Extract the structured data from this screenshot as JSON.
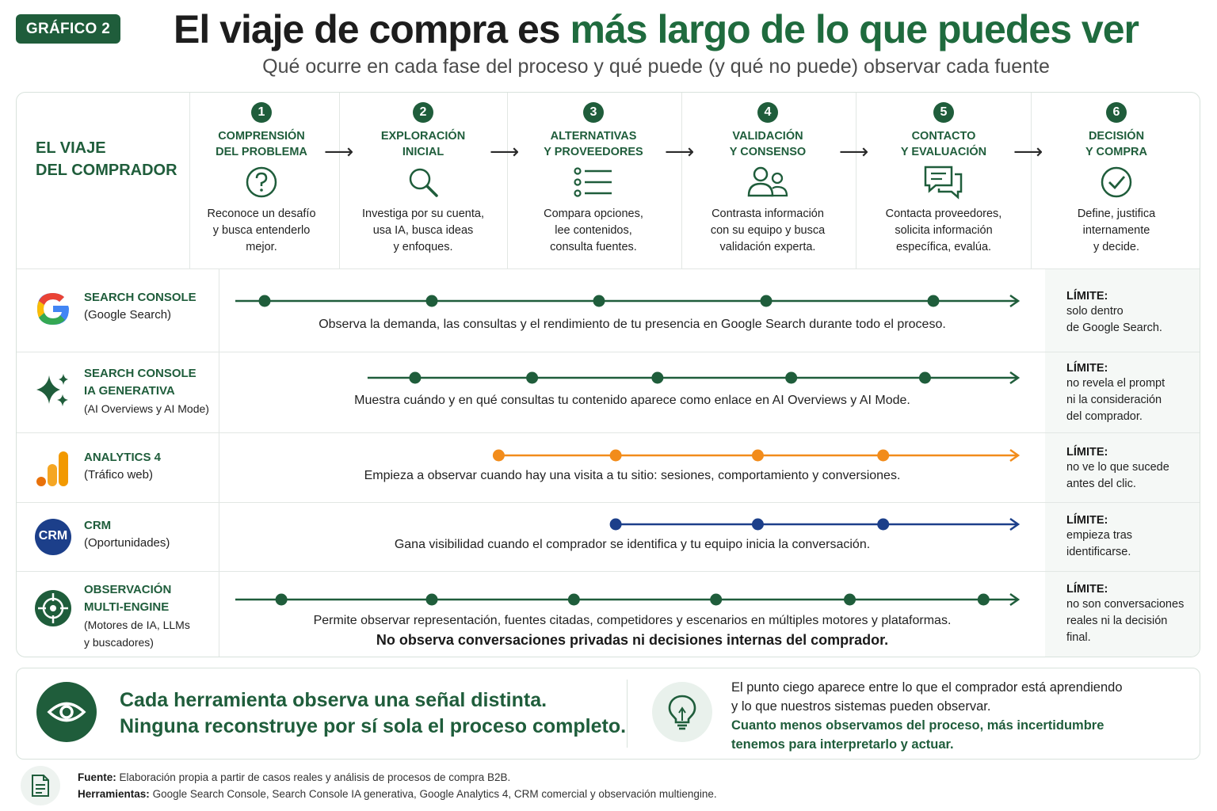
{
  "header": {
    "badge": "GRÁFICO 2",
    "title_plain": "El viaje de compra es",
    "title_accent": "más largo de lo que puedes ver",
    "subtitle": "Qué ocurre en cada fase del proceso y qué puede (y qué no puede) observar cada fuente"
  },
  "journey": {
    "label_line1": "EL VIAJE",
    "label_line2": "DEL COMPRADOR",
    "stages": [
      {
        "num": "1",
        "name": "COMPRENSIÓN\nDEL PROBLEMA",
        "icon": "question-circle-icon",
        "desc": "Reconoce un desafío\ny busca entenderlo\nmejor."
      },
      {
        "num": "2",
        "name": "EXPLORACIÓN\nINICIAL",
        "icon": "magnifier-icon",
        "desc": "Investiga por su cuenta,\nusa IA, busca ideas\ny enfoques."
      },
      {
        "num": "3",
        "name": "ALTERNATIVAS\nY PROVEEDORES",
        "icon": "list-icon",
        "desc": "Compara opciones,\nlee contenidos,\nconsulta fuentes."
      },
      {
        "num": "4",
        "name": "VALIDACIÓN\nY CONSENSO",
        "icon": "users-icon",
        "desc": "Contrasta información\ncon su equipo y busca\nvalidación experta."
      },
      {
        "num": "5",
        "name": "CONTACTO\nY EVALUACIÓN",
        "icon": "chat-bubbles-icon",
        "desc": "Contacta proveedores,\nsolicita información\nespecífica, evalúa."
      },
      {
        "num": "6",
        "name": "DECISIÓN\nY COMPRA",
        "icon": "check-circle-icon",
        "desc": "Define, justifica\ninternamente\ny decide."
      }
    ],
    "arrow_glyph": "⟶"
  },
  "tools": [
    {
      "id": "search-console",
      "logo": "google-g-icon",
      "name": "SEARCH CONSOLE",
      "sub": "(Google Search)",
      "color": "#1f5d3b",
      "points": [
        1,
        2,
        3,
        4,
        5
      ],
      "desc": "Observa la demanda, las consultas y el rendimiento de tu presencia en Google Search durante todo el proceso.",
      "desc2": "",
      "limit_title": "LÍMITE:",
      "limit_body": "solo dentro\nde Google Search."
    },
    {
      "id": "search-console-ia",
      "logo": "sparkles-icon",
      "name": "SEARCH CONSOLE\nIA GENERATIVA",
      "sub": "(AI Overviews y AI Mode)",
      "color": "#1f5d3b",
      "points": [
        1.9,
        2.6,
        3.35,
        4.15,
        4.95
      ],
      "desc": "Muestra cuándo y en qué consultas tu contenido aparece como enlace en AI Overviews y AI Mode.",
      "desc2": "",
      "limit_title": "LÍMITE:",
      "limit_body": "no revela el prompt\nni la consideración\ndel comprador."
    },
    {
      "id": "analytics-4",
      "logo": "analytics-bars-icon",
      "name": "ANALYTICS 4",
      "sub": "(Tráfico web)",
      "color": "#f28c1b",
      "points": [
        2.4,
        3.1,
        3.95,
        4.7
      ],
      "desc": "Empieza a observar cuando hay una visita a tu sitio: sesiones, comportamiento y conversiones.",
      "desc2": "",
      "limit_title": "LÍMITE:",
      "limit_body": "no ve lo que sucede\nantes del clic."
    },
    {
      "id": "crm",
      "logo": "crm-badge-icon",
      "logo_text": "CRM",
      "name": "CRM",
      "sub": "(Oportunidades)",
      "color": "#1c3f8a",
      "points": [
        3.1,
        3.95,
        4.7
      ],
      "desc": "Gana visibilidad cuando el comprador se identifica y tu equipo inicia la conversación.",
      "desc2": "",
      "limit_title": "LÍMITE:",
      "limit_body": "empieza tras\nidentificarse."
    },
    {
      "id": "multiengine",
      "logo": "target-crosshair-icon",
      "name": "OBSERVACIÓN\nMULTI-ENGINE",
      "sub": "(Motores de IA, LLMs\ny buscadores)",
      "color": "#1f5d3b",
      "points": [
        1.1,
        2.0,
        2.85,
        3.7,
        4.5,
        5.3
      ],
      "desc": "Permite observar representación, fuentes citadas, competidores y escenarios en múltiples motores y plataformas.",
      "desc2": "No observa conversaciones privadas ni decisiones internas del comprador.",
      "limit_title": "LÍMITE:",
      "limit_body": "no son conversaciones\nreales ni la decisión\nfinal."
    }
  ],
  "footer": {
    "main_line1": "Cada herramienta observa una señal distinta.",
    "main_line2": "Ninguna reconstruye por sí sola el proceso completo.",
    "right_line1": "El punto ciego aparece entre lo que el comprador está aprendiendo",
    "right_line2": "y lo que nuestros sistemas pueden observar.",
    "right_bold1": "Cuanto menos observamos del proceso, más incertidumbre",
    "right_bold2": "tenemos para interpretarlo y actuar."
  },
  "source": {
    "fuente_label": "Fuente:",
    "fuente_text": "Elaboración propia a partir de casos reales y análisis de procesos de compra B2B.",
    "herramientas_label": "Herramientas:",
    "herramientas_text": "Google Search Console, Search Console IA generativa, Google Analytics 4, CRM comercial y observación multiengine."
  },
  "colors": {
    "brand_green": "#1f5d3b",
    "orange": "#f28c1b",
    "navy": "#1c3f8a"
  }
}
